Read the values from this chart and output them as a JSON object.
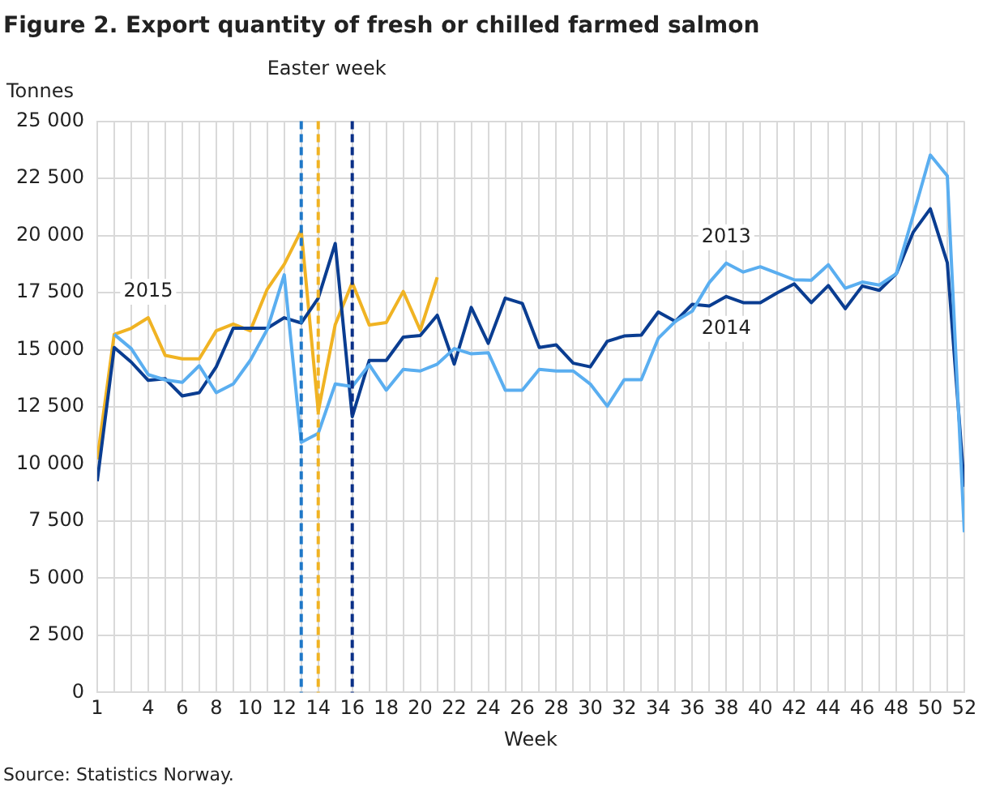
{
  "chart_data": {
    "type": "line",
    "title": "Figure 2. Export quantity of fresh or chilled farmed salmon",
    "xlabel": "Week",
    "ylabel": "Tonnes",
    "x": [
      1,
      2,
      3,
      4,
      5,
      6,
      7,
      8,
      9,
      10,
      11,
      12,
      13,
      14,
      15,
      16,
      17,
      18,
      19,
      20,
      21,
      22,
      23,
      24,
      25,
      26,
      27,
      28,
      29,
      30,
      31,
      32,
      33,
      34,
      35,
      36,
      37,
      38,
      39,
      40,
      41,
      42,
      43,
      44,
      45,
      46,
      47,
      48,
      49,
      50,
      51,
      52
    ],
    "series": [
      {
        "name": "2013",
        "color": "#5aaef0",
        "values": [
          null,
          15670,
          15050,
          13910,
          13680,
          13570,
          14300,
          13120,
          13500,
          14530,
          15890,
          18280,
          10950,
          11340,
          13500,
          13390,
          14340,
          13230,
          14140,
          14070,
          14370,
          15050,
          14820,
          14870,
          13230,
          13230,
          14140,
          14070,
          14070,
          13500,
          12530,
          13690,
          13690,
          15500,
          16240,
          16690,
          17940,
          18790,
          18400,
          18630,
          18350,
          18060,
          18040,
          18720,
          17690,
          17960,
          17830,
          18330,
          20900,
          23520,
          22610,
          7010
        ]
      },
      {
        "name": "2014",
        "color": "#0a3d91",
        "values": [
          9250,
          15100,
          14460,
          13660,
          13730,
          12980,
          13120,
          14250,
          15940,
          15940,
          15940,
          16400,
          16170,
          17260,
          19650,
          12070,
          14530,
          14530,
          15550,
          15620,
          16510,
          14370,
          16850,
          15280,
          17260,
          17030,
          15100,
          15210,
          14410,
          14250,
          15370,
          15600,
          15640,
          16650,
          16240,
          16990,
          16920,
          17330,
          17060,
          17060,
          17490,
          17880,
          17060,
          17810,
          16800,
          17790,
          17600,
          18330,
          20150,
          21170,
          18810,
          9000
        ]
      },
      {
        "name": "2015",
        "color": "#f0b323",
        "values": [
          10200,
          15670,
          15940,
          16400,
          14750,
          14600,
          14600,
          15830,
          16120,
          15830,
          17650,
          18740,
          20220,
          12300,
          16100,
          17940,
          16080,
          16190,
          17550,
          15850,
          18170,
          null,
          null,
          null,
          null,
          null,
          null,
          null,
          null,
          null,
          null,
          null,
          null,
          null,
          null,
          null,
          null,
          null,
          null,
          null,
          null,
          null,
          null,
          null,
          null,
          null,
          null,
          null,
          null,
          null,
          null,
          null
        ]
      }
    ],
    "xlim": [
      1,
      52
    ],
    "xticks": [
      1,
      {
        "value": 2,
        "label": null
      },
      {
        "value": 3,
        "label": null
      },
      4,
      {
        "value": 5,
        "label": null
      },
      6,
      {
        "value": 7,
        "label": null
      },
      8,
      {
        "value": 9,
        "label": null
      },
      10,
      {
        "value": 11,
        "label": null
      },
      12,
      {
        "value": 13,
        "label": null
      },
      14,
      {
        "value": 15,
        "label": null
      },
      16,
      {
        "value": 17,
        "label": null
      },
      18,
      {
        "value": 19,
        "label": null
      },
      20,
      {
        "value": 21,
        "label": null
      },
      22,
      {
        "value": 23,
        "label": null
      },
      24,
      {
        "value": 25,
        "label": null
      },
      26,
      {
        "value": 27,
        "label": null
      },
      28,
      {
        "value": 29,
        "label": null
      },
      30,
      {
        "value": 31,
        "label": null
      },
      32,
      {
        "value": 33,
        "label": null
      },
      34,
      {
        "value": 35,
        "label": null
      },
      36,
      {
        "value": 37,
        "label": null
      },
      38,
      {
        "value": 39,
        "label": null
      },
      40,
      {
        "value": 41,
        "label": null
      },
      42,
      {
        "value": 43,
        "label": null
      },
      44,
      {
        "value": 45,
        "label": null
      },
      46,
      {
        "value": 47,
        "label": null
      },
      48,
      {
        "value": 49,
        "label": null
      },
      50,
      {
        "value": 51,
        "label": null
      },
      52
    ],
    "ylim": [
      0,
      25000
    ],
    "yticks": [
      0,
      {
        "value": 2500,
        "label": "2 500"
      },
      {
        "value": 5000,
        "label": "5 000"
      },
      {
        "value": 7500,
        "label": "7 500"
      },
      {
        "value": 10000,
        "label": "10 000"
      },
      {
        "value": 12500,
        "label": "12 500"
      },
      {
        "value": 15000,
        "label": "15 000"
      },
      {
        "value": 17500,
        "label": "17 500"
      },
      {
        "value": 20000,
        "label": "20 000"
      },
      {
        "value": 22500,
        "label": "22 500"
      },
      {
        "value": 25000,
        "label": "25 000"
      }
    ],
    "grid": true,
    "legend": false,
    "marker": "none",
    "line_style": "solid",
    "ref_lines": [
      {
        "axis": "x",
        "value": 13,
        "color": "#1f78c8",
        "line_style": "dashed"
      },
      {
        "axis": "x",
        "value": 14,
        "color": "#f0b323",
        "line_style": "dashed"
      },
      {
        "axis": "x",
        "value": 16,
        "color": "#0a2f87",
        "line_style": "dashed"
      }
    ],
    "annotations": [
      "Easter week",
      "Source: Statistics Norway."
    ]
  }
}
